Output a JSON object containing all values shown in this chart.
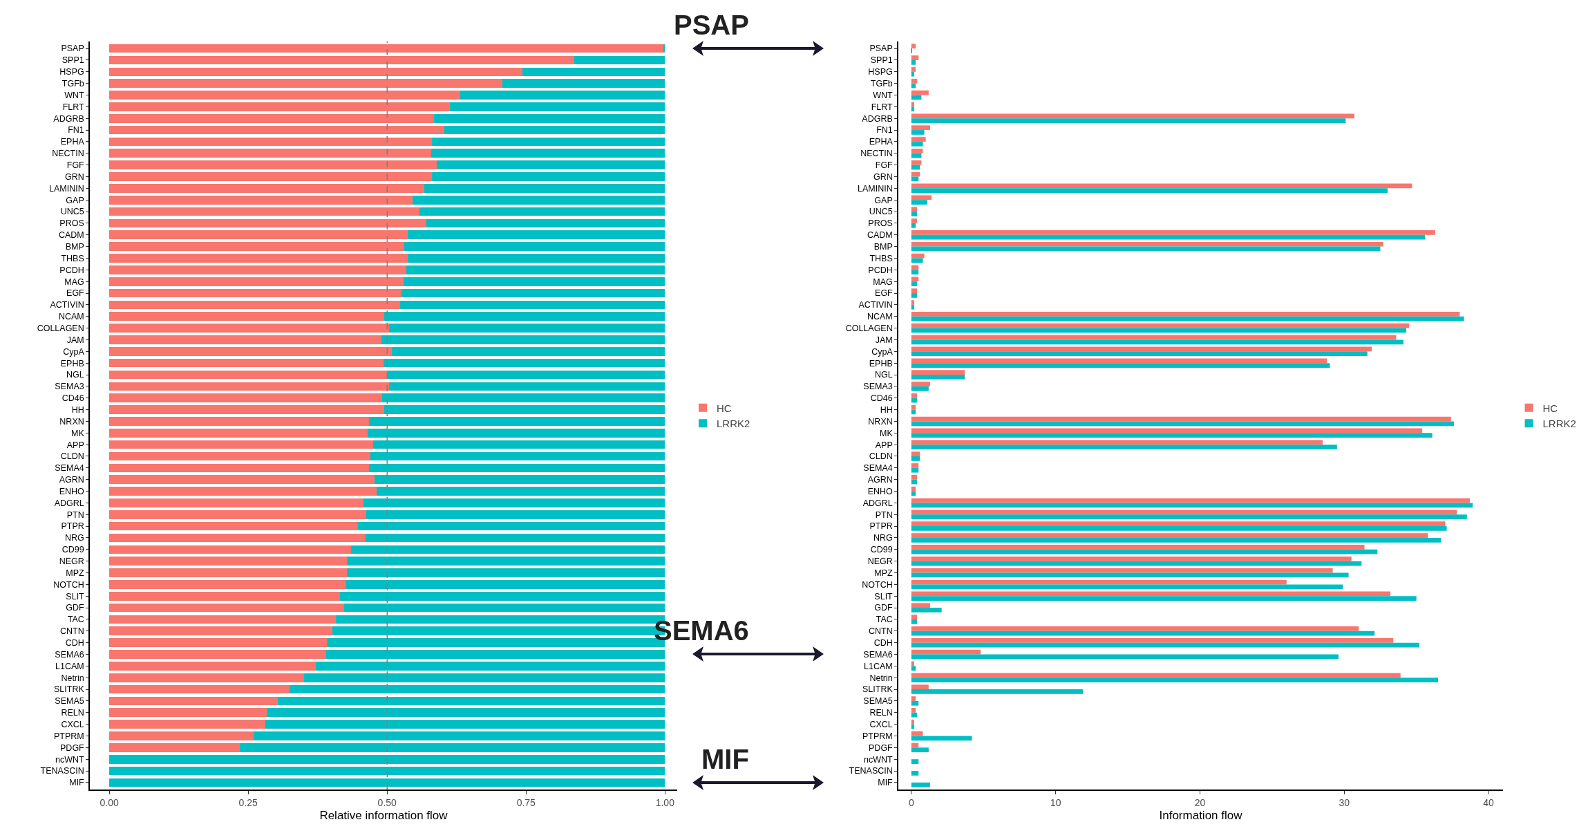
{
  "chart_data": [
    {
      "type": "bar",
      "orientation": "horizontal",
      "stacked": true,
      "xlabel": "Relative information flow",
      "xlim": [
        -0.035,
        1.022
      ],
      "xticks": [
        {
          "value": 0,
          "label": "0.00"
        },
        {
          "value": 0.25,
          "label": "0.25"
        },
        {
          "value": 0.5,
          "label": "0.50"
        },
        {
          "value": 0.75,
          "label": "0.75"
        },
        {
          "value": 1,
          "label": "1.00"
        }
      ],
      "legend": "right",
      "grid": false,
      "categories": [
        "PSAP",
        "SPP1",
        "HSPG",
        "TGFb",
        "WNT",
        "FLRT",
        "ADGRB",
        "FN1",
        "EPHA",
        "NECTIN",
        "FGF",
        "GRN",
        "LAMININ",
        "GAP",
        "UNC5",
        "PROS",
        "CADM",
        "BMP",
        "THBS",
        "PCDH",
        "MAG",
        "EGF",
        "ACTIVIN",
        "NCAM",
        "COLLAGEN",
        "JAM",
        "CypA",
        "EPHB",
        "NGL",
        "SEMA3",
        "CD46",
        "HH",
        "NRXN",
        "MK",
        "APP",
        "CLDN",
        "SEMA4",
        "AGRN",
        "ENHO",
        "ADGRL",
        "PTN",
        "PTPR",
        "NRG",
        "CD99",
        "NEGR",
        "MPZ",
        "NOTCH",
        "SLIT",
        "GDF",
        "TAC",
        "CNTN",
        "CDH",
        "SEMA6",
        "L1CAM",
        "Netrin",
        "SLITRK",
        "SEMA5",
        "RELN",
        "CXCL",
        "PTPRM",
        "PDGF",
        "ncWNT",
        "TENASCIN",
        "MIF"
      ],
      "series": [
        {
          "name": "HC",
          "color": "#f8766d",
          "values": [
            0.998,
            0.837,
            0.744,
            0.707,
            0.632,
            0.613,
            0.584,
            0.603,
            0.581,
            0.579,
            0.589,
            0.581,
            0.567,
            0.546,
            0.558,
            0.57,
            0.537,
            0.531,
            0.537,
            0.535,
            0.529,
            0.526,
            0.523,
            0.495,
            0.504,
            0.49,
            0.508,
            0.494,
            0.5,
            0.504,
            0.491,
            0.495,
            0.468,
            0.465,
            0.475,
            0.47,
            0.468,
            0.477,
            0.481,
            0.457,
            0.462,
            0.448,
            0.461,
            0.435,
            0.428,
            0.428,
            0.426,
            0.415,
            0.423,
            0.408,
            0.402,
            0.391,
            0.39,
            0.372,
            0.351,
            0.324,
            0.303,
            0.283,
            0.281,
            0.26,
            0.235,
            0,
            0,
            0
          ]
        },
        {
          "name": "LRRK2",
          "color": "#00bfc4",
          "values": [
            0.002,
            0.163,
            0.256,
            0.293,
            0.368,
            0.387,
            0.416,
            0.397,
            0.419,
            0.421,
            0.411,
            0.419,
            0.433,
            0.454,
            0.442,
            0.43,
            0.463,
            0.469,
            0.463,
            0.465,
            0.471,
            0.474,
            0.477,
            0.505,
            0.496,
            0.51,
            0.492,
            0.506,
            0.5,
            0.496,
            0.509,
            0.505,
            0.532,
            0.535,
            0.525,
            0.53,
            0.532,
            0.523,
            0.519,
            0.543,
            0.538,
            0.552,
            0.539,
            0.565,
            0.572,
            0.572,
            0.574,
            0.585,
            0.577,
            0.592,
            0.598,
            0.609,
            0.61,
            0.628,
            0.649,
            0.676,
            0.697,
            0.717,
            0.719,
            0.74,
            0.765,
            1,
            1,
            1
          ]
        }
      ],
      "ref_lines": [
        {
          "axis": "x",
          "value": 0.5,
          "color": "#808080",
          "line_style": "dashed"
        }
      ],
      "annotations": [
        "PSAP",
        "SEMA6",
        "MIF"
      ]
    },
    {
      "type": "bar",
      "orientation": "horizontal",
      "xlabel": "Information flow",
      "xlim": [
        -0.9,
        41
      ],
      "xticks": [
        0,
        10,
        20,
        30,
        40
      ],
      "legend": "right",
      "grid": false,
      "categories": [
        "PSAP",
        "SPP1",
        "HSPG",
        "TGFb",
        "WNT",
        "FLRT",
        "ADGRB",
        "FN1",
        "EPHA",
        "NECTIN",
        "FGF",
        "GRN",
        "LAMININ",
        "GAP",
        "UNC5",
        "PROS",
        "CADM",
        "BMP",
        "THBS",
        "PCDH",
        "MAG",
        "EGF",
        "ACTIVIN",
        "NCAM",
        "COLLAGEN",
        "JAM",
        "CypA",
        "EPHB",
        "NGL",
        "SEMA3",
        "CD46",
        "HH",
        "NRXN",
        "MK",
        "APP",
        "CLDN",
        "SEMA4",
        "AGRN",
        "ENHO",
        "ADGRL",
        "PTN",
        "PTPR",
        "NRG",
        "CD99",
        "NEGR",
        "MPZ",
        "NOTCH",
        "SLIT",
        "GDF",
        "TAC",
        "CNTN",
        "CDH",
        "SEMA6",
        "L1CAM",
        "Netrin",
        "SLITRK",
        "SEMA5",
        "RELN",
        "CXCL",
        "PTPRM",
        "PDGF",
        "ncWNT",
        "TENASCIN",
        "MIF"
      ],
      "series": [
        {
          "name": "HC",
          "color": "#f8766d",
          "values": [
            0.3,
            0.5,
            0.3,
            0.4,
            1.2,
            0.2,
            30.7,
            1.3,
            1.0,
            0.8,
            0.7,
            0.6,
            34.7,
            1.4,
            0.4,
            0.4,
            36.3,
            32.7,
            0.9,
            0.5,
            0.5,
            0.4,
            0.2,
            38.0,
            34.5,
            33.6,
            31.9,
            28.8,
            3.7,
            1.3,
            0.4,
            0.3,
            37.4,
            35.4,
            28.5,
            0.6,
            0.5,
            0.4,
            0.3,
            38.7,
            37.8,
            37.0,
            35.8,
            31.4,
            30.5,
            29.2,
            26.0,
            33.2,
            1.3,
            0.4,
            31.0,
            33.4,
            4.8,
            0.2,
            33.9,
            1.2,
            0.3,
            0.3,
            0.2,
            0.8,
            0.5,
            0,
            0,
            0
          ]
        },
        {
          "name": "LRRK2",
          "color": "#00bfc4",
          "values": [
            0.03,
            0.3,
            0.2,
            0.3,
            0.7,
            0.2,
            30.1,
            0.9,
            0.8,
            0.7,
            0.6,
            0.5,
            33.0,
            1.1,
            0.4,
            0.3,
            35.6,
            32.5,
            0.8,
            0.5,
            0.4,
            0.4,
            0.2,
            38.3,
            34.3,
            34.1,
            31.6,
            29.0,
            3.7,
            1.2,
            0.4,
            0.3,
            37.6,
            36.1,
            29.5,
            0.6,
            0.5,
            0.4,
            0.3,
            38.9,
            38.5,
            37.1,
            36.7,
            32.3,
            31.2,
            30.3,
            29.9,
            35.0,
            2.1,
            0.4,
            32.1,
            35.2,
            29.6,
            0.3,
            36.5,
            11.9,
            0.5,
            0.4,
            0.2,
            4.2,
            1.2,
            0.5,
            0.5,
            1.3
          ]
        }
      ]
    }
  ]
}
